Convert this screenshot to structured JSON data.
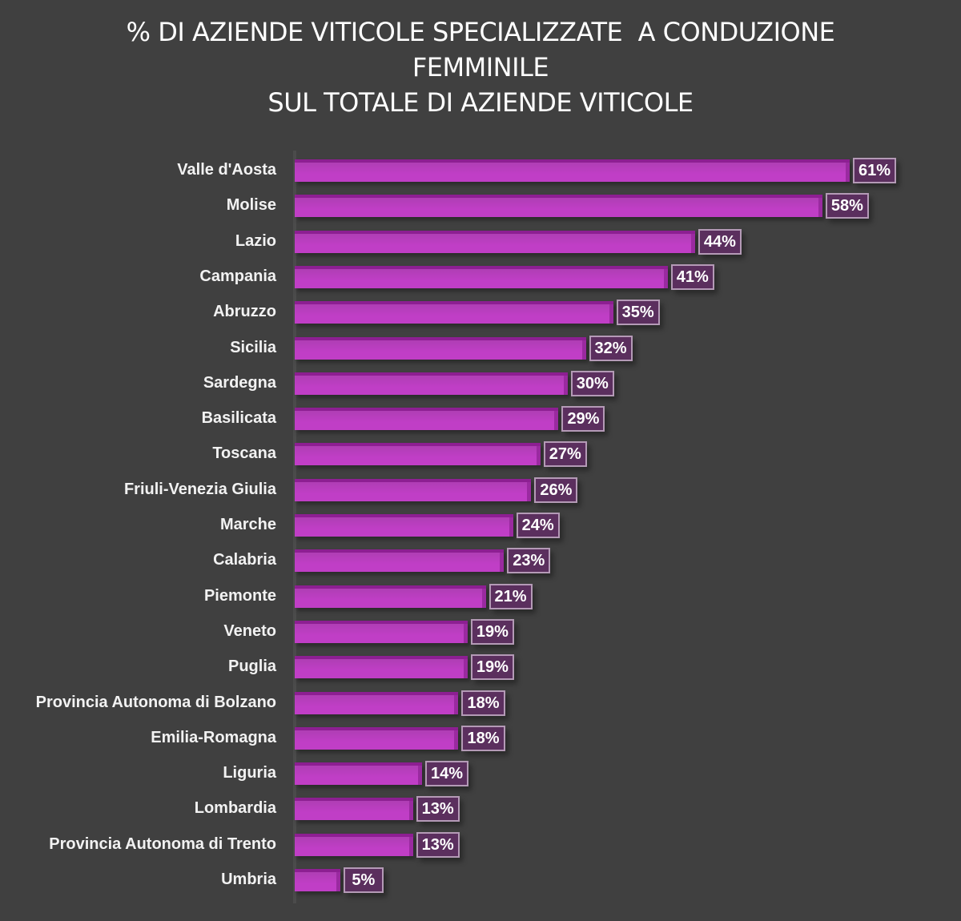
{
  "chart_data": {
    "type": "bar",
    "orientation": "horizontal",
    "title": "% DI AZIENDE VITICOLE SPECIALIZZATE  A CONDUZIONE FEMMINILE SUL TOTALE DI AZIENDE VITICOLE",
    "title_lines": [
      "% DI AZIENDE VITICOLE SPECIALIZZATE  A CONDUZIONE",
      "FEMMINILE",
      "SUL TOTALE DI AZIENDE VITICOLE"
    ],
    "xlabel": "",
    "ylabel": "",
    "unit": "%",
    "xlim": [
      0,
      65
    ],
    "grid": false,
    "legend": null,
    "bar_color": "#c03ec6",
    "label_box_color": "#5b2f5e",
    "background_color": "#404040",
    "categories": [
      "Valle d'Aosta",
      "Molise",
      "Lazio",
      "Campania",
      "Abruzzo",
      "Sicilia",
      "Sardegna",
      "Basilicata",
      "Toscana",
      "Friuli-Venezia Giulia",
      "Marche",
      "Calabria",
      "Piemonte",
      "Veneto",
      "Puglia",
      "Provincia Autonoma di Bolzano",
      "Emilia-Romagna",
      "Liguria",
      "Lombardia",
      "Provincia Autonoma di Trento",
      "Umbria"
    ],
    "values": [
      61,
      58,
      44,
      41,
      35,
      32,
      30,
      29,
      27,
      26,
      24,
      23,
      21,
      19,
      19,
      18,
      18,
      14,
      13,
      13,
      5
    ],
    "data_labels": [
      "61%",
      "58%",
      "44%",
      "41%",
      "35%",
      "32%",
      "30%",
      "29%",
      "27%",
      "26%",
      "24%",
      "23%",
      "21%",
      "19%",
      "19%",
      "18%",
      "18%",
      "14%",
      "13%",
      "13%",
      "5%"
    ]
  }
}
